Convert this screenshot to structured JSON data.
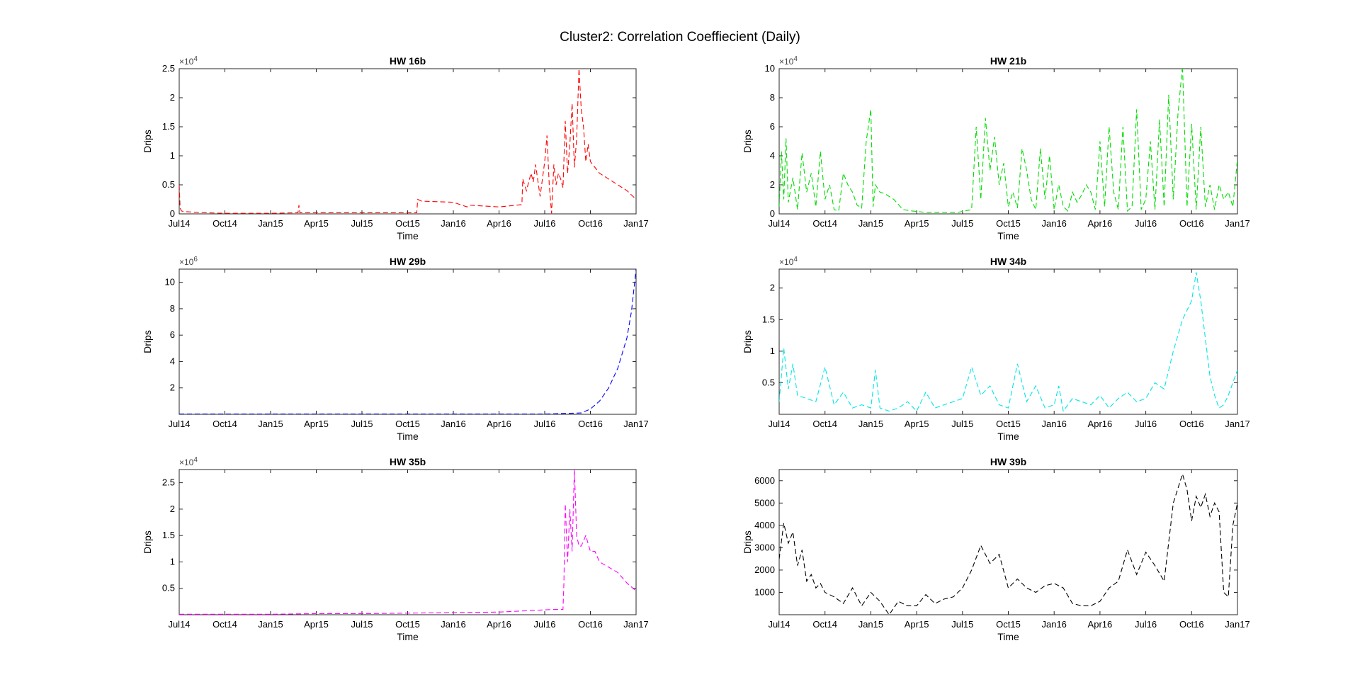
{
  "figure": {
    "title": "Cluster2: Correlation Coeffiecient (Daily)"
  },
  "chart_data": [
    {
      "type": "line",
      "title": "HW 16b",
      "xlabel": "Time",
      "ylabel": "Drips",
      "color": "#ff0000",
      "line_style": "dashed",
      "grid": false,
      "x_ticks": [
        "Jul14",
        "Oct14",
        "Jan15",
        "Apr15",
        "Jul15",
        "Oct15",
        "Jan16",
        "Apr16",
        "Jul16",
        "Oct16",
        "Jan17"
      ],
      "xlim": [
        0,
        10
      ],
      "y_exponent": "4",
      "ylim": [
        0,
        2.5
      ],
      "y_ticks": [
        0,
        0.5,
        1,
        1.5,
        2,
        2.5
      ],
      "y_tick_labels": [
        "0",
        "0.5",
        "1",
        "1.5",
        "2",
        "2.5"
      ],
      "series": [
        {
          "x": [
            0,
            0.02,
            0.05,
            0.1,
            0.3,
            0.6,
            1,
            2,
            2.6,
            2.62,
            2.64,
            3,
            4,
            5,
            5.2,
            5.22,
            5.3,
            6,
            6.3,
            6.35,
            7,
            7.5,
            7.52,
            7.6,
            7.7,
            7.75,
            7.8,
            7.9,
            8,
            8.05,
            8.1,
            8.15,
            8.2,
            8.25,
            8.3,
            8.35,
            8.4,
            8.45,
            8.5,
            8.55,
            8.6,
            8.65,
            8.7,
            8.75,
            8.8,
            8.85,
            8.9,
            8.95,
            9,
            9.2,
            9.4,
            9.6,
            9.8,
            10
          ],
          "y": [
            0.5,
            0.1,
            0.05,
            0.04,
            0.03,
            0.02,
            0.01,
            0.01,
            0.02,
            0.15,
            0.02,
            0.02,
            0.02,
            0.02,
            0.02,
            0.25,
            0.22,
            0.2,
            0.12,
            0.15,
            0.12,
            0.16,
            0.6,
            0.4,
            0.7,
            0.55,
            0.85,
            0.3,
            0.9,
            1.35,
            0.5,
            0.01,
            0.85,
            0.5,
            0.7,
            0.6,
            0.45,
            1.6,
            0.7,
            1.2,
            1.9,
            0.8,
            1.3,
            2.5,
            1.8,
            1.5,
            0.9,
            1.2,
            0.9,
            0.7,
            0.6,
            0.5,
            0.4,
            0.25
          ]
        }
      ]
    },
    {
      "type": "line",
      "title": "HW 21b",
      "xlabel": "Time",
      "ylabel": "Drips",
      "color": "#00dd00",
      "line_style": "dashed",
      "grid": false,
      "x_ticks": [
        "Jul14",
        "Oct14",
        "Jan15",
        "Apr15",
        "Jul15",
        "Oct15",
        "Jan16",
        "Apr16",
        "Jul16",
        "Oct16",
        "Jan17"
      ],
      "xlim": [
        0,
        10
      ],
      "y_exponent": "4",
      "ylim": [
        0,
        10
      ],
      "y_ticks": [
        0,
        2,
        4,
        6,
        8,
        10
      ],
      "y_tick_labels": [
        "0",
        "2",
        "4",
        "6",
        "8",
        "10"
      ],
      "series": [
        {
          "x": [
            0,
            0.05,
            0.1,
            0.15,
            0.2,
            0.3,
            0.4,
            0.5,
            0.6,
            0.7,
            0.8,
            0.9,
            1,
            1.1,
            1.2,
            1.3,
            1.4,
            1.5,
            1.6,
            1.7,
            1.8,
            1.9,
            2,
            2.05,
            2.1,
            2.2,
            2.3,
            2.5,
            2.7,
            2.9,
            3.2,
            3.5,
            3.9,
            4.2,
            4.3,
            4.4,
            4.5,
            4.6,
            4.7,
            4.8,
            4.9,
            5,
            5.1,
            5.2,
            5.3,
            5.4,
            5.5,
            5.6,
            5.7,
            5.8,
            5.9,
            6,
            6.1,
            6.2,
            6.3,
            6.4,
            6.5,
            6.6,
            6.7,
            6.8,
            6.9,
            7,
            7.1,
            7.2,
            7.3,
            7.4,
            7.5,
            7.6,
            7.7,
            7.8,
            7.9,
            8,
            8.1,
            8.2,
            8.3,
            8.4,
            8.5,
            8.6,
            8.7,
            8.8,
            8.9,
            9,
            9.1,
            9.2,
            9.3,
            9.4,
            9.5,
            9.6,
            9.7,
            9.8,
            9.9,
            10
          ],
          "y": [
            0.5,
            4.3,
            1,
            5.2,
            0.8,
            2.5,
            0.3,
            4.2,
            1.5,
            2.8,
            0.5,
            4.3,
            1,
            2,
            0.3,
            0.2,
            2.8,
            2,
            1.5,
            0.6,
            0.4,
            5,
            7.2,
            0.5,
            2,
            1.5,
            1.4,
            1,
            0.3,
            0.2,
            0.1,
            0.1,
            0.1,
            0.3,
            6,
            1,
            6.6,
            3,
            5.3,
            2,
            3.5,
            0.5,
            1.5,
            0.4,
            4.5,
            3,
            1,
            0.3,
            4.5,
            1,
            4,
            0.3,
            2,
            0.5,
            0.2,
            1.5,
            0.8,
            1.3,
            2,
            1.5,
            0.3,
            5,
            0.5,
            6,
            1.5,
            0.3,
            6,
            0.2,
            0.5,
            7.2,
            0.3,
            1,
            5,
            0.3,
            6.5,
            0.5,
            8.2,
            1,
            6.8,
            10.2,
            0.5,
            6.2,
            0.3,
            6,
            0.5,
            2,
            0.3,
            2,
            1,
            1.5,
            0.5,
            3.8
          ]
        }
      ]
    },
    {
      "type": "line",
      "title": "HW 29b",
      "xlabel": "Time",
      "ylabel": "Drips",
      "color": "#0000ff",
      "line_style": "dashed",
      "grid": false,
      "x_ticks": [
        "Jul14",
        "Oct14",
        "Jan15",
        "Apr15",
        "Jul15",
        "Oct15",
        "Jan16",
        "Apr16",
        "Jul16",
        "Oct16",
        "Jan17"
      ],
      "xlim": [
        0,
        10
      ],
      "y_exponent": "6",
      "ylim": [
        0,
        11
      ],
      "y_ticks": [
        2,
        4,
        6,
        8,
        10
      ],
      "y_tick_labels": [
        "2",
        "4",
        "6",
        "8",
        "10"
      ],
      "series": [
        {
          "x": [
            0,
            1,
            2,
            3,
            4,
            5,
            6,
            7,
            8,
            8.8,
            9,
            9.2,
            9.4,
            9.6,
            9.8,
            9.9,
            10
          ],
          "y": [
            0.02,
            0.02,
            0.02,
            0.02,
            0.02,
            0.02,
            0.02,
            0.02,
            0.02,
            0.1,
            0.4,
            1,
            2,
            3.5,
            5.8,
            7.8,
            11
          ]
        }
      ]
    },
    {
      "type": "line",
      "title": "HW 34b",
      "xlabel": "Time",
      "ylabel": "Drips",
      "color": "#00e5e5",
      "line_style": "dashed",
      "grid": false,
      "x_ticks": [
        "Jul14",
        "Oct14",
        "Jan15",
        "Apr15",
        "Jul15",
        "Oct15",
        "Jan16",
        "Apr16",
        "Jul16",
        "Oct16",
        "Jan17"
      ],
      "xlim": [
        0,
        10
      ],
      "y_exponent": "4",
      "ylim": [
        0,
        2.3
      ],
      "y_ticks": [
        0.5,
        1,
        1.5,
        2
      ],
      "y_tick_labels": [
        "0.5",
        "1",
        "1.5",
        "2"
      ],
      "series": [
        {
          "x": [
            0,
            0.1,
            0.2,
            0.3,
            0.4,
            0.6,
            0.8,
            1,
            1.2,
            1.4,
            1.6,
            1.8,
            2,
            2.1,
            2.2,
            2.4,
            2.6,
            2.8,
            3,
            3.2,
            3.4,
            3.6,
            3.8,
            4,
            4.2,
            4.4,
            4.6,
            4.8,
            5,
            5.2,
            5.4,
            5.6,
            5.8,
            6,
            6.1,
            6.2,
            6.4,
            6.6,
            6.8,
            7,
            7.2,
            7.4,
            7.6,
            7.8,
            8,
            8.2,
            8.4,
            8.6,
            8.8,
            9,
            9.1,
            9.2,
            9.3,
            9.4,
            9.5,
            9.6,
            9.7,
            9.8,
            9.9,
            10
          ],
          "y": [
            0.2,
            1.05,
            0.4,
            0.8,
            0.3,
            0.25,
            0.2,
            0.75,
            0.15,
            0.35,
            0.1,
            0.15,
            0.1,
            0.7,
            0.1,
            0.05,
            0.1,
            0.2,
            0.05,
            0.35,
            0.1,
            0.15,
            0.2,
            0.25,
            0.75,
            0.3,
            0.45,
            0.15,
            0.1,
            0.8,
            0.2,
            0.45,
            0.1,
            0.15,
            0.45,
            0.05,
            0.25,
            0.2,
            0.15,
            0.3,
            0.1,
            0.25,
            0.35,
            0.2,
            0.25,
            0.5,
            0.4,
            1,
            1.5,
            1.8,
            2.25,
            1.8,
            1.2,
            0.6,
            0.3,
            0.1,
            0.15,
            0.3,
            0.5,
            0.7
          ]
        }
      ]
    },
    {
      "type": "line",
      "title": "HW 35b",
      "xlabel": "Time",
      "ylabel": "Drips",
      "color": "#ff00ff",
      "line_style": "dashed",
      "grid": false,
      "x_ticks": [
        "Jul14",
        "Oct14",
        "Jan15",
        "Apr15",
        "Jul15",
        "Oct15",
        "Jan16",
        "Apr16",
        "Jul16",
        "Oct16",
        "Jan17"
      ],
      "xlim": [
        0,
        10
      ],
      "y_exponent": "4",
      "ylim": [
        0,
        2.75
      ],
      "y_ticks": [
        0.5,
        1,
        1.5,
        2,
        2.5
      ],
      "y_tick_labels": [
        "0.5",
        "1",
        "1.5",
        "2",
        "2.5"
      ],
      "series": [
        {
          "x": [
            0,
            1,
            2,
            3,
            4,
            5,
            6,
            7,
            8.2,
            8.4,
            8.42,
            8.45,
            8.5,
            8.55,
            8.6,
            8.65,
            8.7,
            8.75,
            8.8,
            8.9,
            9,
            9.1,
            9.2,
            9.4,
            9.6,
            9.8,
            10
          ],
          "y": [
            0.01,
            0.01,
            0.01,
            0.02,
            0.02,
            0.03,
            0.04,
            0.05,
            0.1,
            0.1,
            0.6,
            2.1,
            1,
            2,
            1.2,
            2.75,
            1.5,
            1.3,
            1.3,
            1.5,
            1.2,
            1.2,
            1,
            0.9,
            0.8,
            0.6,
            0.45
          ]
        }
      ]
    },
    {
      "type": "line",
      "title": "HW 39b",
      "xlabel": "Time",
      "ylabel": "Drips",
      "color": "#000000",
      "line_style": "dashed",
      "grid": false,
      "x_ticks": [
        "Jul14",
        "Oct14",
        "Jan15",
        "Apr15",
        "Jul15",
        "Oct15",
        "Jan16",
        "Apr16",
        "Jul16",
        "Oct16",
        "Jan17"
      ],
      "xlim": [
        0,
        10
      ],
      "y_exponent": "",
      "ylim": [
        0,
        6500
      ],
      "y_ticks": [
        1000,
        2000,
        3000,
        4000,
        5000,
        6000
      ],
      "y_tick_labels": [
        "1000",
        "2000",
        "3000",
        "4000",
        "5000",
        "6000"
      ],
      "series": [
        {
          "x": [
            0,
            0.1,
            0.2,
            0.3,
            0.4,
            0.5,
            0.6,
            0.7,
            0.8,
            0.9,
            1,
            1.2,
            1.4,
            1.6,
            1.8,
            2,
            2.2,
            2.4,
            2.6,
            2.8,
            3,
            3.2,
            3.4,
            3.6,
            3.8,
            4,
            4.2,
            4.4,
            4.6,
            4.8,
            5,
            5.2,
            5.4,
            5.6,
            5.8,
            6,
            6.2,
            6.4,
            6.6,
            6.8,
            7,
            7.2,
            7.4,
            7.6,
            7.8,
            8,
            8.2,
            8.4,
            8.6,
            8.8,
            8.9,
            9,
            9.1,
            9.2,
            9.3,
            9.4,
            9.5,
            9.6,
            9.7,
            9.8,
            9.9,
            10
          ],
          "y": [
            2500,
            4100,
            3200,
            3700,
            2200,
            2900,
            1500,
            1800,
            1200,
            1400,
            1000,
            800,
            500,
            1200,
            400,
            1000,
            600,
            0,
            600,
            400,
            400,
            900,
            500,
            700,
            800,
            1200,
            2000,
            3100,
            2300,
            2700,
            1200,
            1600,
            1200,
            1000,
            1300,
            1400,
            1200,
            500,
            400,
            400,
            600,
            1200,
            1500,
            2900,
            1800,
            2800,
            2200,
            1500,
            5000,
            6300,
            5600,
            4200,
            5300,
            4800,
            5400,
            4400,
            5000,
            4600,
            1000,
            800,
            4000,
            5000
          ]
        }
      ]
    }
  ]
}
